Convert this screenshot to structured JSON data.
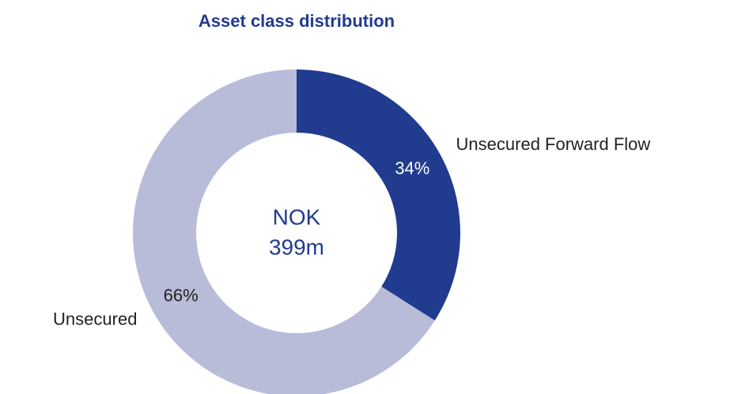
{
  "chart_data": {
    "type": "donut",
    "title": "Asset class distribution",
    "categories": [
      "Unsecured Forward Flow",
      "Unsecured"
    ],
    "values": [
      34,
      66
    ],
    "value_labels": [
      "34%",
      "66%"
    ],
    "colors": [
      "#213b8f",
      "#b8bcd9"
    ],
    "center_text": [
      "NOK",
      "399m"
    ]
  }
}
